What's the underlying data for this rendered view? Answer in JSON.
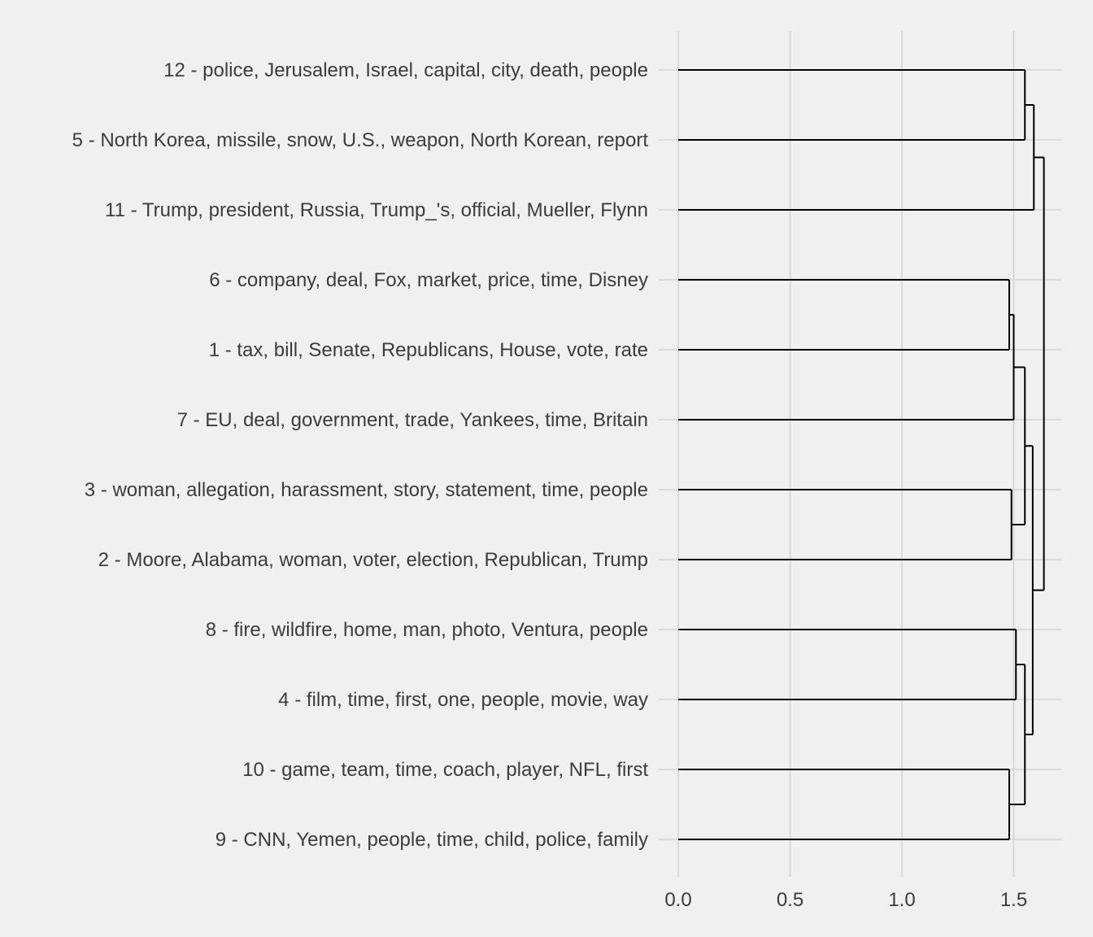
{
  "chart_data": {
    "type": "dendrogram",
    "orientation": "horizontal",
    "title": "",
    "xlabel": "",
    "ylabel": "",
    "xlim": [
      0,
      1.72
    ],
    "x_ticks": [
      0.0,
      0.5,
      1.0,
      1.5
    ],
    "x_tick_labels": [
      "0.0",
      "0.5",
      "1.0",
      "1.5"
    ],
    "grid": true,
    "leaves": [
      "12 - police, Jerusalem, Israel, capital, city, death, people",
      "5 - North Korea, missile, snow, U.S., weapon, North Korean, report",
      "11 - Trump, president, Russia, Trump_'s, official, Mueller, Flynn",
      "6 - company, deal, Fox, market, price, time, Disney",
      "1 - tax, bill, Senate, Republicans, House, vote, rate",
      "7 - EU, deal, government, trade, Yankees, time, Britain",
      "3 - woman, allegation, harassment, story, statement, time, people",
      "2 - Moore, Alabama, woman, voter, election, Republican, Trump",
      "8 - fire, wildfire, home, man, photo, Ventura, people",
      "4 - film, time, first, one, people, movie, way",
      "10 - game, team, time, coach, player, NFL, first",
      "9 - CNN, Yemen, people, time, child, police, family"
    ],
    "merges": [
      {
        "id": "A",
        "children": [
          "L0",
          "L1"
        ],
        "height": 1.55
      },
      {
        "id": "B",
        "children": [
          "A",
          "L2"
        ],
        "height": 1.59
      },
      {
        "id": "C",
        "children": [
          "L3",
          "L4"
        ],
        "height": 1.48
      },
      {
        "id": "D",
        "children": [
          "C",
          "L5"
        ],
        "height": 1.5
      },
      {
        "id": "E",
        "children": [
          "L6",
          "L7"
        ],
        "height": 1.49
      },
      {
        "id": "F",
        "children": [
          "D",
          "E"
        ],
        "height": 1.55
      },
      {
        "id": "G",
        "children": [
          "L8",
          "L9"
        ],
        "height": 1.51
      },
      {
        "id": "H",
        "children": [
          "L10",
          "L11"
        ],
        "height": 1.48
      },
      {
        "id": "I",
        "children": [
          "G",
          "H"
        ],
        "height": 1.55
      },
      {
        "id": "J",
        "children": [
          "F",
          "I"
        ],
        "height": 1.585
      },
      {
        "id": "K",
        "children": [
          "B",
          "J"
        ],
        "height": 1.635
      }
    ]
  }
}
